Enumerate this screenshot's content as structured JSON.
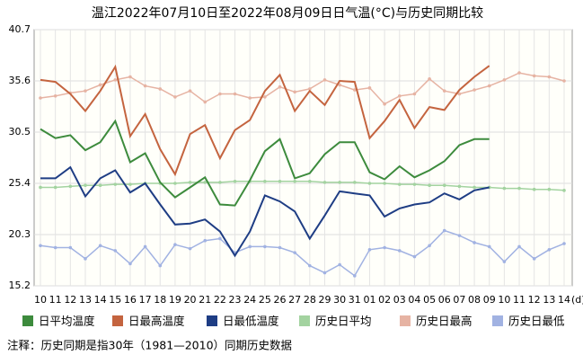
{
  "chart_data": {
    "type": "line",
    "title": "温江2022年07月10日至2022年08月09日日气温(°C)与历史同期比较",
    "categories": [
      "10",
      "11",
      "12",
      "13",
      "14",
      "15",
      "16",
      "17",
      "18",
      "19",
      "20",
      "21",
      "22",
      "23",
      "24",
      "25",
      "26",
      "27",
      "28",
      "29",
      "30",
      "31",
      "01",
      "02",
      "03",
      "04",
      "05",
      "06",
      "07",
      "08",
      "09",
      "10",
      "11",
      "12",
      "13",
      "14"
    ],
    "x_unit": "(d)",
    "ylim": [
      15.2,
      40.7
    ],
    "yticks": [
      15.2,
      20.3,
      25.4,
      30.5,
      35.6,
      40.7
    ],
    "grid": true,
    "legend": "bottom",
    "note": "注释：历史同期是指30年（1981—2010）同期历史数据",
    "series": [
      {
        "name": "日平均温度",
        "color": "#3d8b3d",
        "values": [
          30.8,
          29.9,
          30.2,
          28.7,
          29.5,
          31.6,
          27.5,
          28.4,
          25.5,
          24.0,
          25.0,
          26.0,
          23.3,
          23.2,
          25.7,
          28.6,
          29.8,
          25.9,
          26.4,
          28.3,
          29.5,
          29.5,
          26.5,
          25.8,
          27.1,
          26.0,
          26.7,
          27.6,
          29.2,
          29.8,
          29.8,
          null,
          null,
          null,
          null,
          null
        ]
      },
      {
        "name": "日最高温度",
        "color": "#c4643f",
        "values": [
          35.7,
          35.5,
          34.3,
          32.6,
          34.6,
          37.0,
          30.1,
          32.3,
          28.8,
          26.3,
          30.3,
          31.2,
          27.9,
          30.7,
          31.7,
          34.6,
          36.2,
          32.6,
          34.6,
          33.2,
          35.6,
          35.5,
          29.9,
          31.6,
          33.7,
          30.9,
          33.0,
          32.7,
          34.7,
          36.0,
          37.1,
          null,
          null,
          null,
          null,
          null
        ]
      },
      {
        "name": "日最低温度",
        "color": "#1e3d84",
        "values": [
          25.9,
          25.9,
          27.0,
          24.1,
          25.9,
          26.7,
          24.5,
          25.4,
          23.3,
          21.3,
          21.4,
          21.8,
          20.6,
          18.2,
          20.6,
          24.2,
          23.6,
          22.6,
          19.9,
          22.2,
          24.6,
          24.4,
          24.2,
          22.1,
          22.9,
          23.3,
          23.5,
          24.4,
          23.8,
          24.7,
          25.0,
          null,
          null,
          null,
          null,
          null
        ]
      },
      {
        "name": "历史日平均",
        "color": "#a3d3a0",
        "values": [
          25.0,
          25.0,
          25.1,
          25.2,
          25.2,
          25.3,
          25.3,
          25.4,
          25.4,
          25.4,
          25.5,
          25.5,
          25.5,
          25.6,
          25.6,
          25.6,
          25.6,
          25.6,
          25.6,
          25.5,
          25.5,
          25.5,
          25.4,
          25.4,
          25.3,
          25.3,
          25.2,
          25.2,
          25.1,
          25.0,
          25.0,
          24.9,
          24.9,
          24.8,
          24.8,
          24.7
        ]
      },
      {
        "name": "历史日最高",
        "color": "#e6b3a3",
        "values": [
          33.9,
          34.1,
          34.4,
          34.6,
          35.2,
          35.7,
          36.0,
          35.1,
          34.8,
          34.0,
          34.6,
          33.5,
          34.3,
          34.3,
          33.9,
          34.0,
          35.0,
          34.5,
          34.8,
          35.7,
          35.2,
          34.7,
          34.9,
          33.3,
          34.1,
          34.3,
          35.8,
          34.6,
          34.3,
          34.7,
          35.1,
          35.7,
          36.4,
          36.1,
          36.0,
          35.6
        ]
      },
      {
        "name": "历史日最低",
        "color": "#a1b2e2",
        "values": [
          19.2,
          19.0,
          19.0,
          17.9,
          19.2,
          18.7,
          17.4,
          19.1,
          17.2,
          19.3,
          18.9,
          19.7,
          19.9,
          18.5,
          19.1,
          19.1,
          19.0,
          18.5,
          17.2,
          16.5,
          17.3,
          16.2,
          18.8,
          19.0,
          18.7,
          18.1,
          19.2,
          20.7,
          20.2,
          19.5,
          19.1,
          17.6,
          19.1,
          17.9,
          18.8,
          19.4
        ]
      }
    ]
  }
}
